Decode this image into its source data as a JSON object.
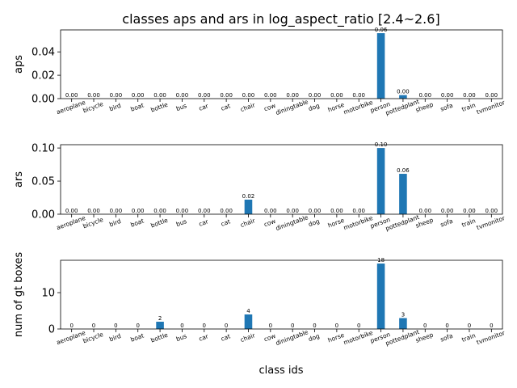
{
  "chart_data": {
    "type": "bar",
    "title": "classes aps and ars in log_aspect_ratio [2.4~2.6]",
    "xlabel": "class ids",
    "bar_color": "#1f77b4",
    "categories": [
      "aeroplane",
      "bicycle",
      "bird",
      "boat",
      "bottle",
      "bus",
      "car",
      "cat",
      "chair",
      "cow",
      "diningtable",
      "dog",
      "horse",
      "motorbike",
      "person",
      "pottedplant",
      "sheep",
      "sofa",
      "train",
      "tvmonitor"
    ],
    "subplots": [
      {
        "ylabel": "aps",
        "ylim": [
          0,
          0.0588
        ],
        "yticks": [
          0.0,
          0.02,
          0.04
        ],
        "ytick_labels": [
          "0.00",
          "0.02",
          "0.04"
        ],
        "values": [
          0,
          0,
          0,
          0,
          0,
          0,
          0,
          0,
          0,
          0,
          0,
          0,
          0,
          0,
          0.056,
          0.003,
          0,
          0,
          0,
          0
        ],
        "data_labels": [
          "0.00",
          "0.00",
          "0.00",
          "0.00",
          "0.00",
          "0.00",
          "0.00",
          "0.00",
          "0.00",
          "0.00",
          "0.00",
          "0.00",
          "0.00",
          "0.00",
          "0.06",
          "0.00",
          "0.00",
          "0.00",
          "0.00",
          "0.00"
        ]
      },
      {
        "ylabel": "ars",
        "ylim": [
          0,
          0.105
        ],
        "yticks": [
          0.0,
          0.05,
          0.1
        ],
        "ytick_labels": [
          "0.00",
          "0.05",
          "0.10"
        ],
        "values": [
          0,
          0,
          0,
          0,
          0,
          0,
          0,
          0,
          0.022,
          0,
          0,
          0,
          0,
          0,
          0.1,
          0.061,
          0,
          0,
          0,
          0
        ],
        "data_labels": [
          "0.00",
          "0.00",
          "0.00",
          "0.00",
          "0.00",
          "0.00",
          "0.00",
          "0.00",
          "0.02",
          "0.00",
          "0.00",
          "0.00",
          "0.00",
          "0.00",
          "0.10",
          "0.06",
          "0.00",
          "0.00",
          "0.00",
          "0.00"
        ]
      },
      {
        "ylabel": "num of gt boxes",
        "ylim": [
          0,
          18.9
        ],
        "yticks": [
          0,
          10
        ],
        "ytick_labels": [
          "0",
          "10"
        ],
        "values": [
          0,
          0,
          0,
          0,
          2,
          0,
          0,
          0,
          4,
          0,
          0,
          0,
          0,
          0,
          18,
          3,
          0,
          0,
          0,
          0
        ],
        "data_labels": [
          "0",
          "0",
          "0",
          "0",
          "2",
          "0",
          "0",
          "0",
          "4",
          "0",
          "0",
          "0",
          "0",
          "0",
          "18",
          "3",
          "0",
          "0",
          "0",
          "0"
        ]
      }
    ]
  }
}
